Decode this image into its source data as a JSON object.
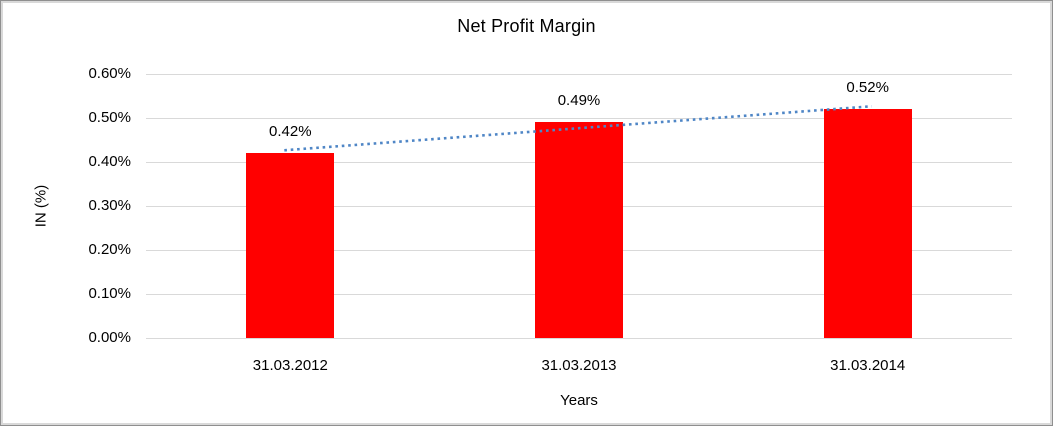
{
  "chart_data": {
    "type": "bar",
    "title": "Net Profit Margin",
    "xlabel": "Years",
    "ylabel": "IN (%)",
    "categories": [
      "31.03.2012",
      "31.03.2013",
      "31.03.2014"
    ],
    "values": [
      0.42,
      0.49,
      0.52
    ],
    "data_labels": [
      "0.42%",
      "0.49%",
      "0.52%"
    ],
    "y_ticks": [
      "0.00%",
      "0.10%",
      "0.20%",
      "0.30%",
      "0.40%",
      "0.50%",
      "0.60%"
    ],
    "ylim": [
      0,
      0.6
    ],
    "grid": true,
    "legend": false,
    "trendline": {
      "type": "linear",
      "style": "dotted"
    },
    "colors": {
      "bar": "#ff0000",
      "trendline": "#4f86c6",
      "gridline": "#d9d9d9",
      "text": "#000000"
    }
  }
}
